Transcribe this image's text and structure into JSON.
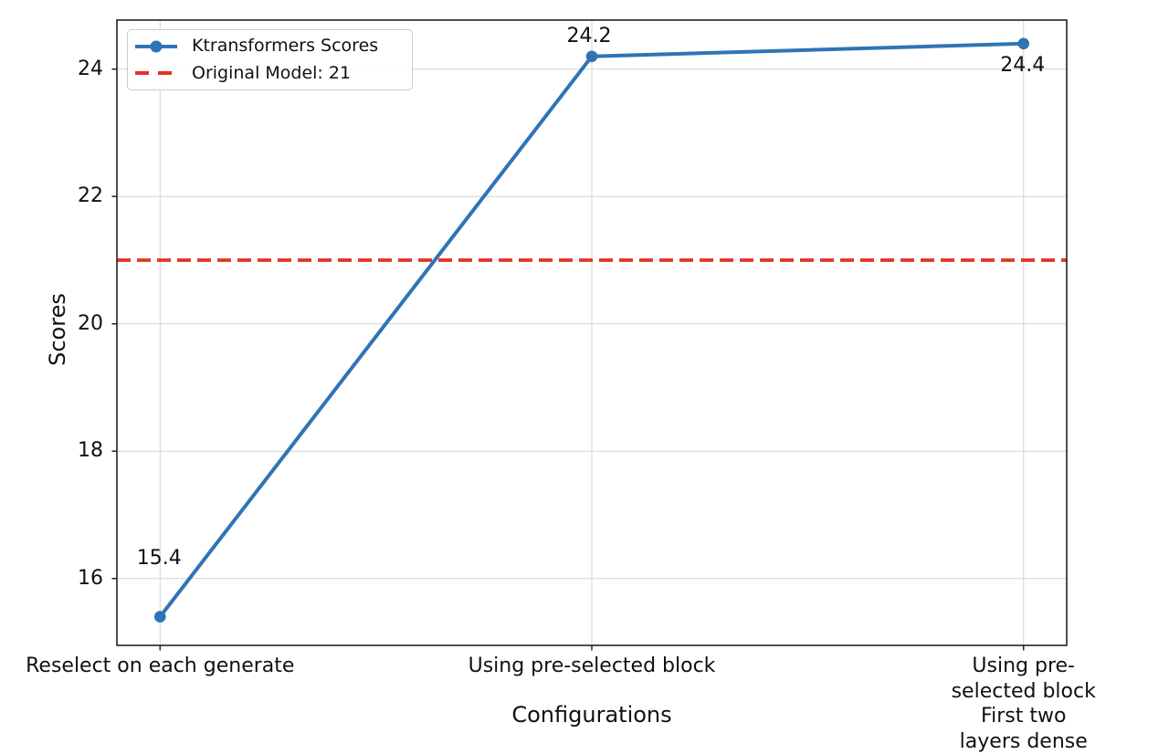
{
  "chart_data": {
    "type": "line",
    "title": "",
    "xlabel": "Configurations",
    "ylabel": "Scores",
    "categories": [
      "Reselect on each generate",
      "Using pre-selected block",
      "Using pre-selected block\nFirst two layers dense"
    ],
    "series": [
      {
        "name": "Ktransformers Scores",
        "values": [
          15.4,
          24.2,
          24.4
        ],
        "point_labels": [
          "15.4",
          "24.2",
          "24.4"
        ],
        "color": "#2f74b5",
        "marker": "circle",
        "line_style": "solid"
      }
    ],
    "reference_line": {
      "label": "Original Model: 21",
      "value": 21,
      "color": "#e53125",
      "line_style": "dashed"
    },
    "yticks": [
      16,
      18,
      20,
      22,
      24
    ],
    "ylim": [
      14.95,
      24.77
    ],
    "xlim": [
      -0.1,
      2.1
    ],
    "grid": true,
    "legend_position": "upper-left",
    "colors": {
      "grid": "#d4d4d4",
      "spine": "#222222",
      "text": "#111111",
      "background": "#ffffff"
    }
  }
}
